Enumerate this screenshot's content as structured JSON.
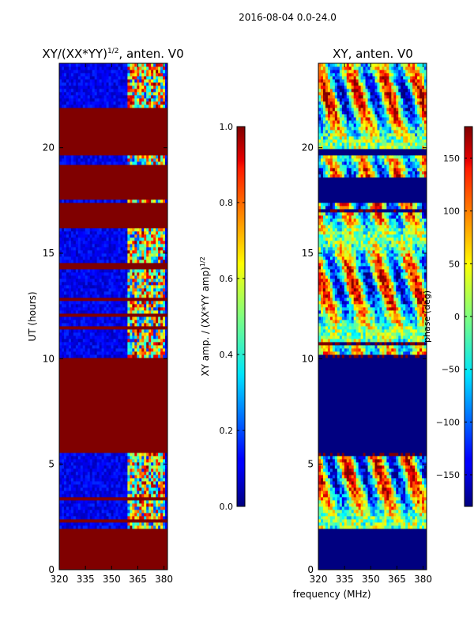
{
  "suptitle": "2016-08-04 0.0-24.0",
  "colors": {
    "background": "#ffffff",
    "low": "#00007f",
    "high": "#7f0000",
    "colormap": "jet"
  },
  "chart_data": [
    {
      "type": "heatmap",
      "title_main": "XY/(XX*YY)",
      "title_exp": "1/2",
      "title_rest": ", anten. V0",
      "xlabel": "",
      "ylabel": "UT (hours)",
      "xlim": [
        320,
        382
      ],
      "ylim": [
        0,
        24
      ],
      "xticks": [
        "320",
        "335",
        "350",
        "365",
        "380"
      ],
      "xtick_values": [
        320,
        335,
        350,
        365,
        380
      ],
      "yticks": [
        "0",
        "5",
        "10",
        "15",
        "20"
      ],
      "ytick_values": [
        0,
        5,
        10,
        15,
        20
      ],
      "rfi_band_mhz": [
        359,
        380
      ],
      "flagged_intervals_ut": [
        [
          0,
          2
        ],
        [
          5.5,
          10
        ],
        [
          12.8,
          12.9
        ],
        [
          16.2,
          17.4
        ],
        [
          17.5,
          19.2
        ],
        [
          19.6,
          21.9
        ]
      ],
      "value_range": [
        0,
        1
      ],
      "colorbar": {
        "label_main": "XY amp. / (XX*YY amp)",
        "label_exp": "1/2",
        "range": [
          0,
          1
        ],
        "ticks": [
          "0.0",
          "0.2",
          "0.4",
          "0.6",
          "0.8",
          "1.0"
        ],
        "tick_values": [
          0,
          0.2,
          0.4,
          0.6,
          0.8,
          1.0
        ]
      }
    },
    {
      "type": "heatmap",
      "title": "XY, anten. V0",
      "xlabel": "frequency (MHz)",
      "ylabel": "",
      "xlim": [
        320,
        382
      ],
      "ylim": [
        0,
        24
      ],
      "xticks": [
        "320",
        "335",
        "350",
        "365",
        "380"
      ],
      "xtick_values": [
        320,
        335,
        350,
        365,
        380
      ],
      "yticks": [
        "0",
        "5",
        "10",
        "15",
        "20"
      ],
      "ytick_values": [
        0,
        5,
        10,
        15,
        20
      ],
      "flagged_intervals_ut": [
        [
          0,
          2
        ],
        [
          5.5,
          10
        ],
        [
          17.4,
          18.6
        ],
        [
          19.6,
          19.9
        ]
      ],
      "value_range": [
        -180,
        180
      ],
      "colorbar": {
        "label": "phase (deg)",
        "range": [
          -180,
          180
        ],
        "ticks": [
          "−150",
          "−100",
          "−50",
          "0",
          "50",
          "100",
          "150"
        ],
        "tick_values": [
          -150,
          -100,
          -50,
          0,
          50,
          100,
          150
        ]
      }
    }
  ]
}
